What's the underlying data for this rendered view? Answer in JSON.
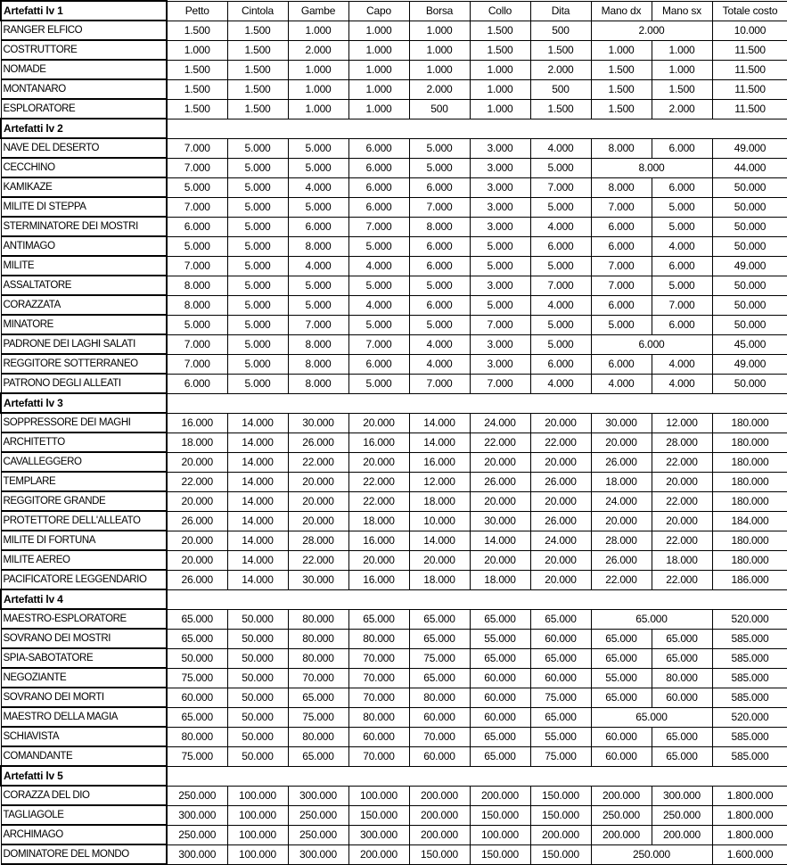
{
  "columns": [
    "Petto",
    "Cintola",
    "Gambe",
    "Capo",
    "Borsa",
    "Collo",
    "Dita",
    "Mano dx",
    "Mano sx",
    "Totale costo"
  ],
  "sections": [
    {
      "title": "Artefatti lv 1",
      "rows": [
        {
          "name": "RANGER ELFICO",
          "slots": [
            "1.500",
            "1.500",
            "1.000",
            "1.000",
            "1.000",
            "1.500",
            "500"
          ],
          "hands_merged": "2.000",
          "total": "10.000"
        },
        {
          "name": "COSTRUTTORE",
          "slots": [
            "1.000",
            "1.500",
            "2.000",
            "1.000",
            "1.000",
            "1.500",
            "1.500"
          ],
          "hands": [
            "1.000",
            "1.000"
          ],
          "total": "11.500"
        },
        {
          "name": "NOMADE",
          "slots": [
            "1.500",
            "1.500",
            "1.000",
            "1.000",
            "1.000",
            "1.000",
            "2.000"
          ],
          "hands": [
            "1.500",
            "1.000"
          ],
          "total": "11.500"
        },
        {
          "name": "MONTANARO",
          "slots": [
            "1.500",
            "1.500",
            "1.000",
            "1.000",
            "2.000",
            "1.000",
            "500"
          ],
          "hands": [
            "1.500",
            "1.500"
          ],
          "total": "11.500"
        },
        {
          "name": "ESPLORATORE",
          "slots": [
            "1.500",
            "1.500",
            "1.000",
            "1.000",
            "500",
            "1.000",
            "1.500"
          ],
          "hands": [
            "1.500",
            "2.000"
          ],
          "total": "11.500"
        }
      ]
    },
    {
      "title": "Artefatti lv 2",
      "rows": [
        {
          "name": "NAVE DEL DESERTO",
          "slots": [
            "7.000",
            "5.000",
            "5.000",
            "6.000",
            "5.000",
            "3.000",
            "4.000"
          ],
          "hands": [
            "8.000",
            "6.000"
          ],
          "total": "49.000"
        },
        {
          "name": "CECCHINO",
          "slots": [
            "7.000",
            "5.000",
            "5.000",
            "6.000",
            "5.000",
            "3.000",
            "5.000"
          ],
          "hands_merged": "8.000",
          "total": "44.000"
        },
        {
          "name": "KAMIKAZE",
          "slots": [
            "5.000",
            "5.000",
            "4.000",
            "6.000",
            "6.000",
            "3.000",
            "7.000"
          ],
          "hands": [
            "8.000",
            "6.000"
          ],
          "total": "50.000"
        },
        {
          "name": "MILITE DI STEPPA",
          "slots": [
            "7.000",
            "5.000",
            "5.000",
            "6.000",
            "7.000",
            "3.000",
            "5.000"
          ],
          "hands": [
            "7.000",
            "5.000"
          ],
          "total": "50.000"
        },
        {
          "name": "STERMINATORE DEI MOSTRI",
          "slots": [
            "6.000",
            "5.000",
            "6.000",
            "7.000",
            "8.000",
            "3.000",
            "4.000"
          ],
          "hands": [
            "6.000",
            "5.000"
          ],
          "total": "50.000"
        },
        {
          "name": "ANTIMAGO",
          "slots": [
            "5.000",
            "5.000",
            "8.000",
            "5.000",
            "6.000",
            "5.000",
            "6.000"
          ],
          "hands": [
            "6.000",
            "4.000"
          ],
          "total": "50.000"
        },
        {
          "name": "MILITE",
          "slots": [
            "7.000",
            "5.000",
            "4.000",
            "4.000",
            "6.000",
            "5.000",
            "5.000"
          ],
          "hands": [
            "7.000",
            "6.000"
          ],
          "total": "49.000"
        },
        {
          "name": "ASSALTATORE",
          "slots": [
            "8.000",
            "5.000",
            "5.000",
            "5.000",
            "5.000",
            "3.000",
            "7.000"
          ],
          "hands": [
            "7.000",
            "5.000"
          ],
          "total": "50.000"
        },
        {
          "name": "CORAZZATA",
          "slots": [
            "8.000",
            "5.000",
            "5.000",
            "4.000",
            "6.000",
            "5.000",
            "4.000"
          ],
          "hands": [
            "6.000",
            "7.000"
          ],
          "total": "50.000"
        },
        {
          "name": "MINATORE",
          "slots": [
            "5.000",
            "5.000",
            "7.000",
            "5.000",
            "5.000",
            "7.000",
            "5.000"
          ],
          "hands": [
            "5.000",
            "6.000"
          ],
          "total": "50.000"
        },
        {
          "name": "PADRONE DEI LAGHI SALATI",
          "slots": [
            "7.000",
            "5.000",
            "8.000",
            "7.000",
            "4.000",
            "3.000",
            "5.000"
          ],
          "hands_merged": "6.000",
          "total": "45.000"
        },
        {
          "name": "REGGITORE SOTTERRANEO",
          "slots": [
            "7.000",
            "5.000",
            "8.000",
            "6.000",
            "4.000",
            "3.000",
            "6.000"
          ],
          "hands": [
            "6.000",
            "4.000"
          ],
          "total": "49.000"
        },
        {
          "name": "PATRONO DEGLI ALLEATI",
          "slots": [
            "6.000",
            "5.000",
            "8.000",
            "5.000",
            "7.000",
            "7.000",
            "4.000"
          ],
          "hands": [
            "4.000",
            "4.000"
          ],
          "total": "50.000"
        }
      ]
    },
    {
      "title": "Artefatti lv 3",
      "rows": [
        {
          "name": "SOPPRESSORE DEI MAGHI",
          "slots": [
            "16.000",
            "14.000",
            "30.000",
            "20.000",
            "14.000",
            "24.000",
            "20.000"
          ],
          "hands": [
            "30.000",
            "12.000"
          ],
          "total": "180.000"
        },
        {
          "name": "ARCHITETTO",
          "slots": [
            "18.000",
            "14.000",
            "26.000",
            "16.000",
            "14.000",
            "22.000",
            "22.000"
          ],
          "hands": [
            "20.000",
            "28.000"
          ],
          "total": "180.000"
        },
        {
          "name": "CAVALLEGGERO",
          "slots": [
            "20.000",
            "14.000",
            "22.000",
            "20.000",
            "16.000",
            "20.000",
            "20.000"
          ],
          "hands": [
            "26.000",
            "22.000"
          ],
          "total": "180.000"
        },
        {
          "name": "TEMPLARE",
          "slots": [
            "22.000",
            "14.000",
            "20.000",
            "22.000",
            "12.000",
            "26.000",
            "26.000"
          ],
          "hands": [
            "18.000",
            "20.000"
          ],
          "total": "180.000"
        },
        {
          "name": "REGGITORE GRANDE",
          "slots": [
            "20.000",
            "14.000",
            "20.000",
            "22.000",
            "18.000",
            "20.000",
            "20.000"
          ],
          "hands": [
            "24.000",
            "22.000"
          ],
          "total": "180.000"
        },
        {
          "name": "PROTETTORE DELL'ALLEATO",
          "slots": [
            "26.000",
            "14.000",
            "20.000",
            "18.000",
            "10.000",
            "30.000",
            "26.000"
          ],
          "hands": [
            "20.000",
            "20.000"
          ],
          "total": "184.000"
        },
        {
          "name": "MILITE DI FORTUNA",
          "slots": [
            "20.000",
            "14.000",
            "28.000",
            "16.000",
            "14.000",
            "14.000",
            "24.000"
          ],
          "hands": [
            "28.000",
            "22.000"
          ],
          "total": "180.000"
        },
        {
          "name": "MILITE AEREO",
          "slots": [
            "20.000",
            "14.000",
            "22.000",
            "20.000",
            "20.000",
            "20.000",
            "20.000"
          ],
          "hands": [
            "26.000",
            "18.000"
          ],
          "total": "180.000"
        },
        {
          "name": "PACIFICATORE LEGGENDARIO",
          "slots": [
            "26.000",
            "14.000",
            "30.000",
            "16.000",
            "18.000",
            "18.000",
            "20.000"
          ],
          "hands": [
            "22.000",
            "22.000"
          ],
          "total": "186.000"
        }
      ]
    },
    {
      "title": "Artefatti lv 4",
      "rows": [
        {
          "name": "MAESTRO-ESPLORATORE",
          "slots": [
            "65.000",
            "50.000",
            "80.000",
            "65.000",
            "65.000",
            "65.000",
            "65.000"
          ],
          "hands_merged": "65.000",
          "total": "520.000"
        },
        {
          "name": "SOVRANO DEI MOSTRI",
          "slots": [
            "65.000",
            "50.000",
            "80.000",
            "80.000",
            "65.000",
            "55.000",
            "60.000"
          ],
          "hands": [
            "65.000",
            "65.000"
          ],
          "total": "585.000"
        },
        {
          "name": "SPIA-SABOTATORE",
          "slots": [
            "50.000",
            "50.000",
            "80.000",
            "70.000",
            "75.000",
            "65.000",
            "65.000"
          ],
          "hands": [
            "65.000",
            "65.000"
          ],
          "total": "585.000"
        },
        {
          "name": "NEGOZIANTE",
          "slots": [
            "75.000",
            "50.000",
            "70.000",
            "70.000",
            "65.000",
            "60.000",
            "60.000"
          ],
          "hands": [
            "55.000",
            "80.000"
          ],
          "total": "585.000"
        },
        {
          "name": "SOVRANO DEI MORTI",
          "slots": [
            "60.000",
            "50.000",
            "65.000",
            "70.000",
            "80.000",
            "60.000",
            "75.000"
          ],
          "hands": [
            "65.000",
            "60.000"
          ],
          "total": "585.000"
        },
        {
          "name": "MAESTRO DELLA MAGIA",
          "slots": [
            "65.000",
            "50.000",
            "75.000",
            "80.000",
            "60.000",
            "60.000",
            "65.000"
          ],
          "hands_merged": "65.000",
          "total": "520.000"
        },
        {
          "name": "SCHIAVISTA",
          "slots": [
            "80.000",
            "50.000",
            "80.000",
            "60.000",
            "70.000",
            "65.000",
            "55.000"
          ],
          "hands": [
            "60.000",
            "65.000"
          ],
          "total": "585.000"
        },
        {
          "name": "COMANDANTE",
          "slots": [
            "75.000",
            "50.000",
            "65.000",
            "70.000",
            "60.000",
            "65.000",
            "75.000"
          ],
          "hands": [
            "60.000",
            "65.000"
          ],
          "total": "585.000"
        }
      ]
    },
    {
      "title": "Artefatti lv 5",
      "rows": [
        {
          "name": "CORAZZA DEL DIO",
          "slots": [
            "250.000",
            "100.000",
            "300.000",
            "100.000",
            "200.000",
            "200.000",
            "150.000"
          ],
          "hands": [
            "200.000",
            "300.000"
          ],
          "total": "1.800.000"
        },
        {
          "name": "TAGLIAGOLE",
          "slots": [
            "300.000",
            "100.000",
            "250.000",
            "150.000",
            "200.000",
            "150.000",
            "150.000"
          ],
          "hands": [
            "250.000",
            "250.000"
          ],
          "total": "1.800.000"
        },
        {
          "name": "ARCHIMAGO",
          "slots": [
            "250.000",
            "100.000",
            "250.000",
            "300.000",
            "200.000",
            "100.000",
            "200.000"
          ],
          "hands": [
            "200.000",
            "200.000"
          ],
          "total": "1.800.000"
        },
        {
          "name": "DOMINATORE DEL MONDO",
          "slots": [
            "300.000",
            "100.000",
            "300.000",
            "200.000",
            "150.000",
            "150.000",
            "150.000"
          ],
          "hands_merged": "250.000",
          "total": "1.600.000"
        }
      ]
    }
  ]
}
